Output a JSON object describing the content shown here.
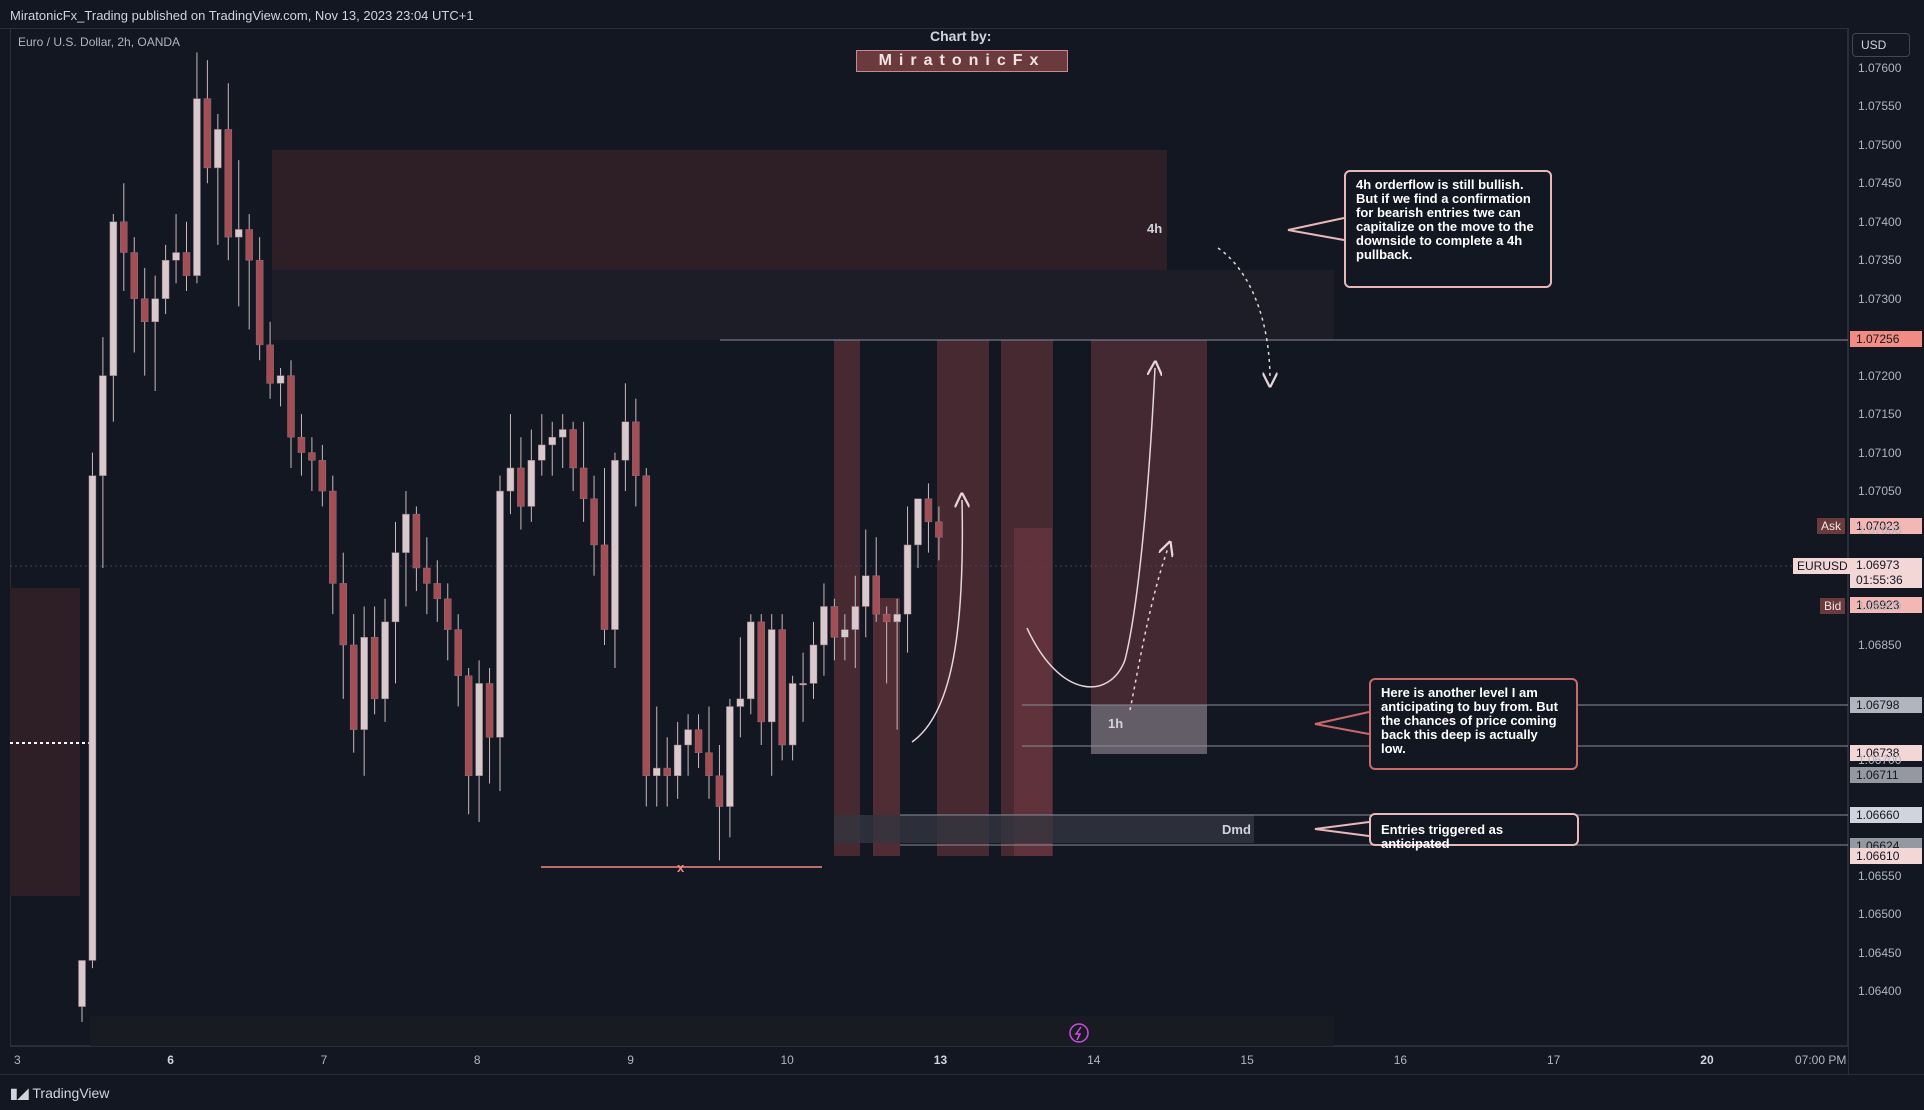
{
  "header": {
    "published": "MiratonicFx_Trading published on TradingView.com, Nov 13, 2023 23:04 UTC+1"
  },
  "symbol_line": "Euro / U.S. Dollar, 2h, OANDA",
  "credit": {
    "title": "Chart by:",
    "name": "MiratonicFx"
  },
  "currency_button": "USD",
  "footer": {
    "brand": "TradingView"
  },
  "colors": {
    "background": "#131722",
    "bull_body": "#d8c9cd",
    "bear_body": "#a34e55",
    "zone": "#4a2b33",
    "accent": "#f28b82",
    "grid": "#2a2e39"
  },
  "annotations": {
    "zone_4h": "4h",
    "zone_1h": "1h",
    "zone_dmd": "Dmd",
    "low_marker": "x",
    "note_top": "4h orderflow is still bullish. But if we find a confirmation for bearish entries twe can capitalize on the move to the downside to complete a 4h pullback.",
    "note_mid": "Here is another level I am anticipating to buy from. But the chances of price coming back this deep is actually low.",
    "note_bottom": "Entries triggered as anticipated"
  },
  "price_tags": {
    "ask_label": "Ask",
    "ask": "1.07023",
    "pair_label": "EURUSD",
    "last": "1.06973",
    "countdown": "01:55:36",
    "bid_label": "Bid",
    "bid": "1.06923",
    "level_high": "1.07256",
    "level_1h_top": "1.06798",
    "level_1h_bottom": "1.06738",
    "level_a": "1.06711",
    "level_dmd_top": "1.06660",
    "level_b": "1.06624",
    "level_dmd_bottom": "1.06610"
  },
  "chart_data": {
    "type": "candlestick",
    "symbol": "EURUSD",
    "interval": "2h",
    "ylim": [
      1.0636,
      1.07605
    ],
    "y_ticks": [
      "1.07600",
      "1.07550",
      "1.07500",
      "1.07450",
      "1.07400",
      "1.07350",
      "1.07300",
      "1.07200",
      "1.07150",
      "1.07100",
      "1.07050",
      "1.07000",
      "1.06900",
      "1.06850",
      "1.06700",
      "1.06550",
      "1.06500",
      "1.06450",
      "1.06400"
    ],
    "x_ticks": [
      {
        "label": "3",
        "bold": false
      },
      {
        "label": "6",
        "bold": true
      },
      {
        "label": "7",
        "bold": false
      },
      {
        "label": "8",
        "bold": false
      },
      {
        "label": "9",
        "bold": false
      },
      {
        "label": "10",
        "bold": false
      },
      {
        "label": "13",
        "bold": true
      },
      {
        "label": "14",
        "bold": false
      },
      {
        "label": "15",
        "bold": false
      },
      {
        "label": "16",
        "bold": false
      },
      {
        "label": "17",
        "bold": false
      },
      {
        "label": "20",
        "bold": true
      },
      {
        "label": "07:00 PM",
        "bold": false
      }
    ],
    "candles": [
      [
        1.0638,
        1.0644,
        1.0636,
        1.0644
      ],
      [
        1.0644,
        1.071,
        1.0643,
        1.0707
      ],
      [
        1.0707,
        1.0725,
        1.0695,
        1.072
      ],
      [
        1.072,
        1.0741,
        1.0714,
        1.074
      ],
      [
        1.074,
        1.0745,
        1.0731,
        1.0736
      ],
      [
        1.0736,
        1.0738,
        1.0723,
        1.073
      ],
      [
        1.073,
        1.0734,
        1.072,
        1.0727
      ],
      [
        1.0727,
        1.0733,
        1.0718,
        1.073
      ],
      [
        1.073,
        1.0737,
        1.0728,
        1.0735
      ],
      [
        1.0735,
        1.0741,
        1.0732,
        1.0736
      ],
      [
        1.0736,
        1.074,
        1.0731,
        1.0733
      ],
      [
        1.0733,
        1.0762,
        1.0732,
        1.0756
      ],
      [
        1.0756,
        1.0761,
        1.0745,
        1.0747
      ],
      [
        1.0747,
        1.0754,
        1.0737,
        1.0752
      ],
      [
        1.0752,
        1.0758,
        1.0735,
        1.0738
      ],
      [
        1.0738,
        1.0748,
        1.0729,
        1.0739
      ],
      [
        1.0739,
        1.0741,
        1.0726,
        1.0735
      ],
      [
        1.0735,
        1.0738,
        1.0722,
        1.0724
      ],
      [
        1.0724,
        1.0727,
        1.0717,
        1.0719
      ],
      [
        1.0719,
        1.0721,
        1.0716,
        1.072
      ],
      [
        1.072,
        1.0722,
        1.0708,
        1.0712
      ],
      [
        1.0712,
        1.0715,
        1.0707,
        1.071
      ],
      [
        1.071,
        1.0712,
        1.0705,
        1.0709
      ],
      [
        1.0709,
        1.0711,
        1.0703,
        1.0705
      ],
      [
        1.0705,
        1.0707,
        1.0689,
        1.0693
      ],
      [
        1.0693,
        1.0697,
        1.0678,
        1.0685
      ],
      [
        1.0685,
        1.0689,
        1.0671,
        1.0674
      ],
      [
        1.0674,
        1.069,
        1.0668,
        1.0686
      ],
      [
        1.0686,
        1.069,
        1.0676,
        1.0678
      ],
      [
        1.0678,
        1.0691,
        1.0675,
        1.0688
      ],
      [
        1.0688,
        1.0701,
        1.068,
        1.0697
      ],
      [
        1.0697,
        1.0705,
        1.069,
        1.0702
      ],
      [
        1.0702,
        1.0703,
        1.0692,
        1.0695
      ],
      [
        1.0695,
        1.0699,
        1.0689,
        1.0693
      ],
      [
        1.0693,
        1.0696,
        1.0688,
        1.0691
      ],
      [
        1.0691,
        1.0693,
        1.0683,
        1.0687
      ],
      [
        1.0687,
        1.0689,
        1.0677,
        1.0681
      ],
      [
        1.0681,
        1.0682,
        1.0663,
        1.0668
      ],
      [
        1.0668,
        1.0683,
        1.0662,
        1.068
      ],
      [
        1.068,
        1.0682,
        1.0667,
        1.0673
      ],
      [
        1.0673,
        1.0707,
        1.0666,
        1.0705
      ],
      [
        1.0705,
        1.0715,
        1.0702,
        1.0708
      ],
      [
        1.0708,
        1.0712,
        1.07,
        1.0703
      ],
      [
        1.0703,
        1.0713,
        1.0701,
        1.0709
      ],
      [
        1.0709,
        1.0715,
        1.0707,
        1.0711
      ],
      [
        1.0711,
        1.0714,
        1.0707,
        1.0712
      ],
      [
        1.0712,
        1.0715,
        1.0708,
        1.0713
      ],
      [
        1.0713,
        1.0714,
        1.0705,
        1.0708
      ],
      [
        1.0708,
        1.0714,
        1.0701,
        1.0704
      ],
      [
        1.0704,
        1.0707,
        1.0694,
        1.0698
      ],
      [
        1.0698,
        1.0708,
        1.0685,
        1.0687
      ],
      [
        1.0687,
        1.071,
        1.0682,
        1.0709
      ],
      [
        1.0709,
        1.0719,
        1.0705,
        1.0714
      ],
      [
        1.0714,
        1.0717,
        1.0703,
        1.0707
      ],
      [
        1.0707,
        1.0708,
        1.0664,
        1.0668
      ],
      [
        1.0668,
        1.0677,
        1.0664,
        1.0669
      ],
      [
        1.0669,
        1.0673,
        1.0664,
        1.0668
      ],
      [
        1.0668,
        1.0675,
        1.0665,
        1.0672
      ],
      [
        1.0672,
        1.0676,
        1.0668,
        1.0674
      ],
      [
        1.0674,
        1.0676,
        1.0669,
        1.0671
      ],
      [
        1.0671,
        1.0677,
        1.0665,
        1.0668
      ],
      [
        1.0668,
        1.0672,
        1.0657,
        1.0664
      ],
      [
        1.0664,
        1.0678,
        1.066,
        1.0677
      ],
      [
        1.0677,
        1.0686,
        1.0673,
        1.0678
      ],
      [
        1.0678,
        1.0689,
        1.0676,
        1.0688
      ],
      [
        1.0688,
        1.0689,
        1.0672,
        1.0675
      ],
      [
        1.0675,
        1.0689,
        1.0668,
        1.0687
      ],
      [
        1.0687,
        1.0689,
        1.067,
        1.0672
      ],
      [
        1.0672,
        1.0681,
        1.067,
        1.068
      ],
      [
        1.068,
        1.0684,
        1.0675,
        1.068
      ],
      [
        1.068,
        1.0688,
        1.0678,
        1.0685
      ],
      [
        1.0685,
        1.0693,
        1.0681,
        1.069
      ],
      [
        1.069,
        1.0691,
        1.0683,
        1.0686
      ],
      [
        1.0686,
        1.0689,
        1.0683,
        1.0687
      ],
      [
        1.0687,
        1.0694,
        1.0682,
        1.069
      ],
      [
        1.069,
        1.07,
        1.0686,
        1.0694
      ],
      [
        1.0694,
        1.0699,
        1.0688,
        1.0689
      ],
      [
        1.0689,
        1.069,
        1.068,
        1.0688
      ],
      [
        1.0688,
        1.0691,
        1.0674,
        1.0689
      ],
      [
        1.0689,
        1.0703,
        1.0684,
        1.0698
      ],
      [
        1.0698,
        1.0704,
        1.0695,
        1.0704
      ],
      [
        1.0704,
        1.0706,
        1.0697,
        1.0701
      ],
      [
        1.0701,
        1.0703,
        1.0696,
        1.0699
      ]
    ]
  }
}
